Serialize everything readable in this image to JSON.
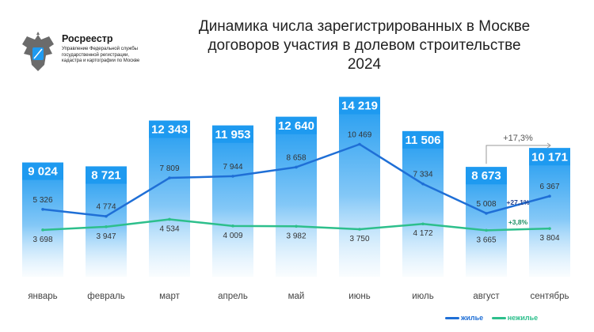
{
  "org": {
    "name": "Росреестр",
    "subtitle": "Управление Федеральной службы государственной регистрации, кадастра и картографии по Москве"
  },
  "title": {
    "line1": "Динамика числа зарегистрированных в Москве",
    "line2": "договоров участия в долевом строительстве",
    "line3": "2024"
  },
  "chart_data": {
    "type": "bar",
    "categories": [
      "январь",
      "февраль",
      "март",
      "апрель",
      "май",
      "июнь",
      "июль",
      "август",
      "сентябрь"
    ],
    "totals": [
      9024,
      8721,
      12343,
      11953,
      12640,
      14219,
      11506,
      8673,
      10171
    ],
    "total_labels": [
      "9 024",
      "8 721",
      "12 343",
      "11 953",
      "12 640",
      "14 219",
      "11 506",
      "8 673",
      "10 171"
    ],
    "series": [
      {
        "name": "жилье",
        "type": "line",
        "color": "#1f6fd6",
        "values": [
          5326,
          4774,
          7809,
          7944,
          8658,
          10469,
          7334,
          5008,
          6367
        ],
        "labels": [
          "5 326",
          "4 774",
          "7 809",
          "7 944",
          "8 658",
          "10 469",
          "7 334",
          "5 008",
          "6 367"
        ]
      },
      {
        "name": "нежилье",
        "type": "line",
        "color": "#2dbf8c",
        "values": [
          3698,
          3947,
          4534,
          4009,
          3982,
          3750,
          4172,
          3665,
          3804
        ],
        "labels": [
          "3 698",
          "3 947",
          "4 534",
          "4 009",
          "3 982",
          "3 750",
          "4 172",
          "3 665",
          "3 804"
        ]
      }
    ],
    "annotations": {
      "total_change": "+17,3%",
      "residential_change": "+27,1%",
      "nonresidential_change": "+3,8%"
    },
    "colors": {
      "bar": "#1e9af0",
      "bar_fade": "#e6f4fd"
    },
    "ylim": [
      0,
      15000
    ]
  }
}
